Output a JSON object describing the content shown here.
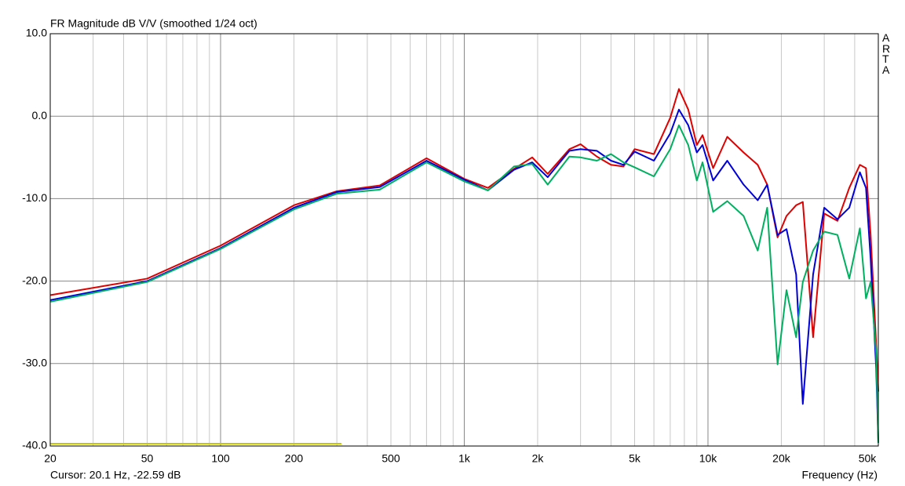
{
  "chart_data": {
    "type": "line",
    "title": "FR Magnitude dB V/V (smoothed 1/24 oct)",
    "brand": "ARTA",
    "cursor": "Cursor: 20.1 Hz, -22.59 dB",
    "x_label": "Frequency (Hz)",
    "log_x": true,
    "grid": true,
    "xlim": [
      20,
      50000
    ],
    "ylim": [
      -40,
      10
    ],
    "xticks": [
      20,
      50,
      100,
      200,
      500,
      {
        "value": 1000,
        "label": "1k"
      },
      {
        "value": 2000,
        "label": "2k"
      },
      {
        "value": 5000,
        "label": "5k"
      },
      {
        "value": 10000,
        "label": "10k"
      },
      {
        "value": 20000,
        "label": "20k"
      },
      {
        "value": 50000,
        "label": "50k"
      }
    ],
    "yticks": [
      {
        "value": -40,
        "label": "-40.0"
      },
      {
        "value": -30,
        "label": "-30.0"
      },
      {
        "value": -20,
        "label": "-20.0"
      },
      {
        "value": -10,
        "label": "-10.0"
      },
      {
        "value": 0,
        "label": "0.0"
      },
      {
        "value": 10,
        "label": "10.0"
      }
    ],
    "x": [
      20,
      50,
      100,
      200,
      300,
      450,
      700,
      1000,
      1250,
      1600,
      1900,
      2200,
      2700,
      3000,
      3500,
      4000,
      4500,
      5000,
      6000,
      7000,
      7600,
      8300,
      9000,
      9500,
      10500,
      12000,
      14000,
      16000,
      17500,
      19300,
      21000,
      23000,
      24500,
      27000,
      30000,
      34000,
      38000,
      42000,
      44500,
      46500,
      49000,
      50000
    ],
    "series": [
      {
        "name": "red",
        "color": "#e00000",
        "values": [
          -21.7,
          -19.7,
          -15.7,
          -10.8,
          -9.1,
          -8.4,
          -5.1,
          -7.6,
          -8.7,
          -6.4,
          -5.0,
          -7.0,
          -4.0,
          -3.4,
          -4.9,
          -5.9,
          -6.1,
          -4.0,
          -4.6,
          -0.2,
          3.3,
          0.8,
          -3.5,
          -2.3,
          -6.3,
          -2.5,
          -4.4,
          -5.9,
          -8.3,
          -14.7,
          -12.1,
          -10.8,
          -10.4,
          -26.8,
          -11.8,
          -12.7,
          -8.7,
          -5.9,
          -6.3,
          -14.4,
          -27.7,
          -33.4
        ]
      },
      {
        "name": "blue",
        "color": "#0000d8",
        "values": [
          -22.3,
          -20.0,
          -16.0,
          -11.1,
          -9.2,
          -8.6,
          -5.4,
          -7.7,
          -9.0,
          -6.5,
          -5.6,
          -7.4,
          -4.2,
          -4.0,
          -4.2,
          -5.4,
          -5.9,
          -4.3,
          -5.4,
          -2.1,
          0.8,
          -1.1,
          -4.4,
          -3.5,
          -7.8,
          -5.4,
          -8.3,
          -10.2,
          -8.3,
          -14.4,
          -13.7,
          -19.2,
          -34.9,
          -19.2,
          -11.1,
          -12.5,
          -11.1,
          -6.8,
          -8.7,
          -17.3,
          -30.6,
          -39.6
        ]
      },
      {
        "name": "green",
        "color": "#00b060",
        "values": [
          -22.5,
          -20.1,
          -16.1,
          -11.3,
          -9.4,
          -8.9,
          -5.6,
          -7.9,
          -9.0,
          -6.1,
          -5.8,
          -8.3,
          -4.9,
          -5.0,
          -5.4,
          -4.6,
          -5.6,
          -6.2,
          -7.3,
          -4.0,
          -1.1,
          -3.5,
          -7.8,
          -5.6,
          -11.6,
          -10.3,
          -12.1,
          -16.3,
          -11.1,
          -30.1,
          -21.1,
          -26.8,
          -20.1,
          -16.3,
          -14.0,
          -14.4,
          -19.7,
          -13.6,
          -22.1,
          -20.1,
          -28.7,
          -39.6
        ]
      }
    ]
  }
}
